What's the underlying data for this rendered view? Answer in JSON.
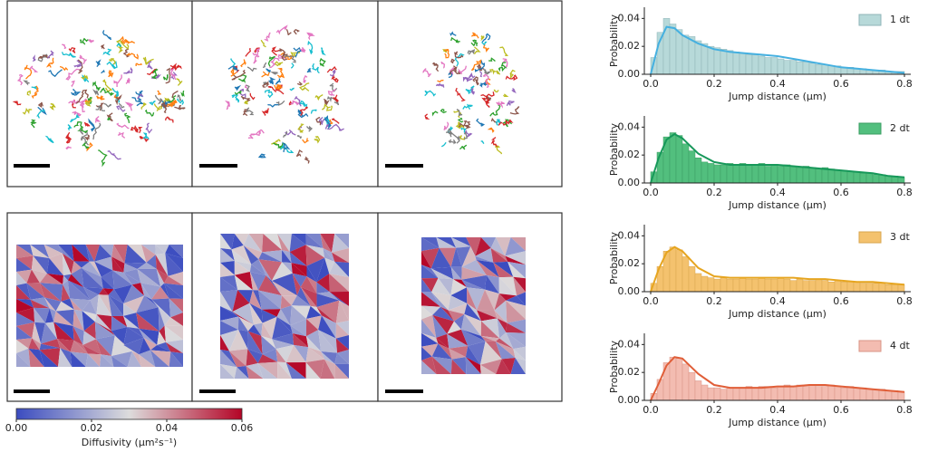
{
  "chart_data": [
    {
      "type": "histogram",
      "name": "1 dt",
      "xlabel": "Jump distance (μm)",
      "ylabel": "Probability",
      "color": "#b7d9d9",
      "edgecolor": "#8fb4b8",
      "bins": [
        0,
        0.02,
        0.04,
        0.06,
        0.08,
        0.1,
        0.12,
        0.14,
        0.16,
        0.18,
        0.2,
        0.22,
        0.24,
        0.26,
        0.28,
        0.3,
        0.32,
        0.34,
        0.36,
        0.38,
        0.4,
        0.42,
        0.44,
        0.46,
        0.48,
        0.5,
        0.52,
        0.54,
        0.56,
        0.58,
        0.6,
        0.62,
        0.64,
        0.66,
        0.68,
        0.7,
        0.72,
        0.74,
        0.76,
        0.78,
        0.8
      ],
      "counts": [
        0.012,
        0.03,
        0.04,
        0.036,
        0.032,
        0.028,
        0.027,
        0.024,
        0.022,
        0.02,
        0.019,
        0.018,
        0.017,
        0.016,
        0.015,
        0.014,
        0.014,
        0.013,
        0.012,
        0.012,
        0.011,
        0.01,
        0.01,
        0.009,
        0.009,
        0.008,
        0.007,
        0.007,
        0.006,
        0.006,
        0.005,
        0.005,
        0.004,
        0.004,
        0.003,
        0.003,
        0.003,
        0.002,
        0.002,
        0.002
      ],
      "fit": {
        "color": "#45b0e0",
        "x": [
          0,
          0.025,
          0.05,
          0.075,
          0.1,
          0.15,
          0.2,
          0.25,
          0.3,
          0.35,
          0.4,
          0.45,
          0.5,
          0.55,
          0.6,
          0.65,
          0.7,
          0.75,
          0.8
        ],
        "values": [
          0,
          0.022,
          0.034,
          0.033,
          0.028,
          0.022,
          0.018,
          0.016,
          0.015,
          0.014,
          0.013,
          0.011,
          0.009,
          0.007,
          0.005,
          0.004,
          0.003,
          0.002,
          0.001
        ]
      },
      "xlim": [
        -0.02,
        0.82
      ],
      "ylim": [
        0,
        0.048
      ],
      "xticks": [
        {
          "value": 0,
          "label": "0.0"
        },
        0.2,
        0.4,
        0.6,
        0.8
      ],
      "yticks": [
        {
          "value": 0,
          "label": "0.00"
        },
        0.02,
        0.04
      ]
    },
    {
      "type": "histogram",
      "name": "2 dt",
      "xlabel": "Jump distance (μm)",
      "ylabel": "Probability",
      "color": "#52bf7e",
      "edgecolor": "#3a9e62",
      "bins": [
        0,
        0.02,
        0.04,
        0.06,
        0.08,
        0.1,
        0.12,
        0.14,
        0.16,
        0.18,
        0.2,
        0.22,
        0.24,
        0.26,
        0.28,
        0.3,
        0.32,
        0.34,
        0.36,
        0.38,
        0.4,
        0.42,
        0.44,
        0.46,
        0.48,
        0.5,
        0.52,
        0.54,
        0.56,
        0.58,
        0.6,
        0.62,
        0.64,
        0.66,
        0.68,
        0.7,
        0.72,
        0.74,
        0.76,
        0.78,
        0.8
      ],
      "counts": [
        0.008,
        0.022,
        0.033,
        0.036,
        0.034,
        0.028,
        0.023,
        0.018,
        0.015,
        0.014,
        0.013,
        0.013,
        0.014,
        0.013,
        0.014,
        0.013,
        0.013,
        0.014,
        0.012,
        0.013,
        0.012,
        0.013,
        0.012,
        0.011,
        0.012,
        0.011,
        0.01,
        0.011,
        0.01,
        0.009,
        0.009,
        0.008,
        0.008,
        0.007,
        0.007,
        0.006,
        0.006,
        0.005,
        0.005,
        0.004
      ],
      "fit": {
        "color": "#17985a",
        "x": [
          0,
          0.025,
          0.05,
          0.075,
          0.1,
          0.15,
          0.2,
          0.25,
          0.3,
          0.35,
          0.4,
          0.45,
          0.5,
          0.55,
          0.6,
          0.65,
          0.7,
          0.75,
          0.8
        ],
        "values": [
          0,
          0.018,
          0.031,
          0.035,
          0.032,
          0.021,
          0.015,
          0.013,
          0.013,
          0.013,
          0.013,
          0.012,
          0.011,
          0.01,
          0.009,
          0.008,
          0.007,
          0.005,
          0.004
        ]
      },
      "xlim": [
        -0.02,
        0.82
      ],
      "ylim": [
        0,
        0.048
      ],
      "xticks": [
        {
          "value": 0,
          "label": "0.0"
        },
        0.2,
        0.4,
        0.6,
        0.8
      ],
      "yticks": [
        {
          "value": 0,
          "label": "0.00"
        },
        0.02,
        0.04
      ]
    },
    {
      "type": "histogram",
      "name": "3 dt",
      "xlabel": "Jump distance (μm)",
      "ylabel": "Probability",
      "color": "#f4c26e",
      "edgecolor": "#d9a64e",
      "bins": [
        0,
        0.02,
        0.04,
        0.06,
        0.08,
        0.1,
        0.12,
        0.14,
        0.16,
        0.18,
        0.2,
        0.22,
        0.24,
        0.26,
        0.28,
        0.3,
        0.32,
        0.34,
        0.36,
        0.38,
        0.4,
        0.42,
        0.44,
        0.46,
        0.48,
        0.5,
        0.52,
        0.54,
        0.56,
        0.58,
        0.6,
        0.62,
        0.64,
        0.66,
        0.68,
        0.7,
        0.72,
        0.74,
        0.76,
        0.78,
        0.8
      ],
      "counts": [
        0.006,
        0.018,
        0.029,
        0.032,
        0.03,
        0.025,
        0.018,
        0.013,
        0.011,
        0.01,
        0.009,
        0.01,
        0.009,
        0.009,
        0.01,
        0.009,
        0.009,
        0.01,
        0.009,
        0.009,
        0.01,
        0.009,
        0.008,
        0.009,
        0.008,
        0.008,
        0.009,
        0.008,
        0.007,
        0.008,
        0.007,
        0.007,
        0.007,
        0.006,
        0.006,
        0.006,
        0.006,
        0.005,
        0.005,
        0.005
      ],
      "fit": {
        "color": "#e6a520",
        "x": [
          0,
          0.025,
          0.05,
          0.075,
          0.1,
          0.15,
          0.2,
          0.25,
          0.3,
          0.35,
          0.4,
          0.45,
          0.5,
          0.55,
          0.6,
          0.65,
          0.7,
          0.75,
          0.8
        ],
        "values": [
          0,
          0.016,
          0.028,
          0.032,
          0.029,
          0.017,
          0.011,
          0.01,
          0.01,
          0.01,
          0.01,
          0.01,
          0.009,
          0.009,
          0.008,
          0.007,
          0.007,
          0.006,
          0.005
        ]
      },
      "xlim": [
        -0.02,
        0.82
      ],
      "ylim": [
        0,
        0.048
      ],
      "xticks": [
        {
          "value": 0,
          "label": "0.0"
        },
        0.2,
        0.4,
        0.6,
        0.8
      ],
      "yticks": [
        {
          "value": 0,
          "label": "0.00"
        },
        0.02,
        0.04
      ]
    },
    {
      "type": "histogram",
      "name": "4 dt",
      "xlabel": "Jump distance (μm)",
      "ylabel": "Probability",
      "color": "#f3bcb1",
      "edgecolor": "#d99486",
      "bins": [
        0,
        0.02,
        0.04,
        0.06,
        0.08,
        0.1,
        0.12,
        0.14,
        0.16,
        0.18,
        0.2,
        0.22,
        0.24,
        0.26,
        0.28,
        0.3,
        0.32,
        0.34,
        0.36,
        0.38,
        0.4,
        0.42,
        0.44,
        0.46,
        0.48,
        0.5,
        0.52,
        0.54,
        0.56,
        0.58,
        0.6,
        0.62,
        0.64,
        0.66,
        0.68,
        0.7,
        0.72,
        0.74,
        0.76,
        0.78,
        0.8
      ],
      "counts": [
        0.005,
        0.015,
        0.027,
        0.031,
        0.03,
        0.026,
        0.02,
        0.014,
        0.011,
        0.009,
        0.009,
        0.008,
        0.009,
        0.009,
        0.009,
        0.01,
        0.009,
        0.01,
        0.01,
        0.009,
        0.01,
        0.011,
        0.01,
        0.011,
        0.01,
        0.011,
        0.01,
        0.01,
        0.011,
        0.01,
        0.009,
        0.01,
        0.009,
        0.009,
        0.008,
        0.008,
        0.008,
        0.007,
        0.007,
        0.006
      ],
      "fit": {
        "color": "#e05e38",
        "x": [
          0,
          0.025,
          0.05,
          0.075,
          0.1,
          0.15,
          0.2,
          0.25,
          0.3,
          0.35,
          0.4,
          0.45,
          0.5,
          0.55,
          0.6,
          0.65,
          0.7,
          0.75,
          0.8
        ],
        "values": [
          0,
          0.012,
          0.025,
          0.031,
          0.03,
          0.019,
          0.011,
          0.009,
          0.009,
          0.009,
          0.01,
          0.01,
          0.011,
          0.011,
          0.01,
          0.009,
          0.008,
          0.007,
          0.006
        ]
      },
      "xlim": [
        -0.02,
        0.82
      ],
      "ylim": [
        0,
        0.048
      ],
      "xticks": [
        {
          "value": 0,
          "label": "0.0"
        },
        0.2,
        0.4,
        0.6,
        0.8
      ],
      "yticks": [
        {
          "value": 0,
          "label": "0.00"
        },
        0.02,
        0.04
      ]
    },
    {
      "type": "colorbar",
      "label": "Diffusivity (μm²s⁻¹)",
      "colors": [
        "#3b4cc0",
        "#dddcdc",
        "#b40426"
      ],
      "xlim": [
        0,
        0.06
      ],
      "xticks": [
        {
          "value": 0,
          "label": "0.00"
        },
        0.02,
        0.04,
        0.06
      ]
    }
  ]
}
